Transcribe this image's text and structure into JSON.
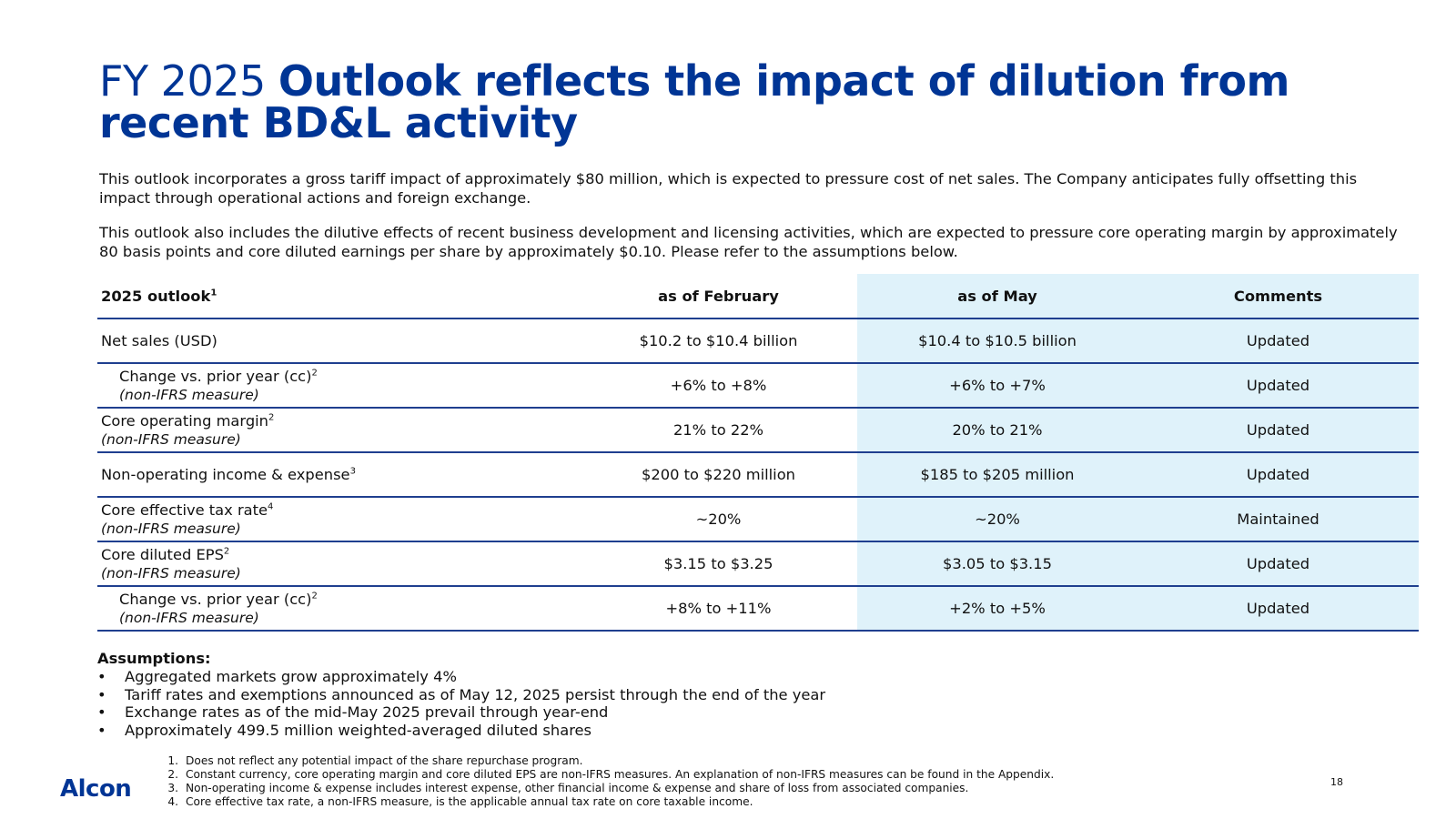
{
  "slide": {
    "title_light": "FY 2025 ",
    "title_bold": "Outlook reflects the impact of dilution from recent BD&L activity",
    "intro_1": "This outlook incorporates a gross tariff impact of approximately $80 million, which is expected to pressure cost of net sales. The Company anticipates fully offsetting this impact through operational actions and foreign exchange.",
    "intro_2": "This outlook also includes the dilutive effects of recent business development and licensing activities, which are expected to pressure core operating margin by approximately 80 basis points and core diluted earnings per share by approximately $0.10. Please refer to the assumptions below.",
    "page_number": "18",
    "logo_text": "Alcon",
    "brand_color": "#003595",
    "highlight_color": "#dff2fa"
  },
  "table": {
    "headers": {
      "col1": "2025 outlook",
      "col1_sup": "1",
      "col2": "as of February",
      "col3": "as of May",
      "col4": "Comments"
    },
    "rows": [
      {
        "label": "Net sales (USD)",
        "sup": "",
        "sub": "",
        "feb": "$10.2 to $10.4 billion",
        "may": "$10.4 to $10.5 billion",
        "comment": "Updated"
      },
      {
        "label": "Change vs. prior year (cc)",
        "sup": "2",
        "sub": "(non-IFRS measure)",
        "feb": "+6% to +8%",
        "may": "+6% to +7%",
        "comment": "Updated"
      },
      {
        "label": "Core operating margin",
        "sup": "2",
        "sub": "(non-IFRS measure)",
        "feb": "21% to 22%",
        "may": "20% to 21%",
        "comment": "Updated"
      },
      {
        "label": "Non-operating income & expense",
        "sup": "3",
        "sub": "",
        "feb": "$200 to $220 million",
        "may": "$185 to $205 million",
        "comment": "Updated"
      },
      {
        "label": "Core effective tax rate",
        "sup": "4",
        "sub": "(non-IFRS measure)",
        "feb": "~20%",
        "may": "~20%",
        "comment": "Maintained"
      },
      {
        "label": "Core diluted EPS",
        "sup": "2",
        "sub": "(non-IFRS measure)",
        "feb": "$3.15 to $3.25",
        "may": "$3.05 to $3.15",
        "comment": "Updated"
      },
      {
        "label": "Change vs. prior year (cc)",
        "sup": "2",
        "sub": "(non-IFRS measure)",
        "feb": "+8% to +11%",
        "may": "+2% to +5%",
        "comment": "Updated"
      }
    ]
  },
  "assumptions": {
    "title": "Assumptions:",
    "bullet": "•",
    "items": [
      "Aggregated markets grow approximately 4%",
      "Tariff rates and exemptions announced as of May 12, 2025 persist through the end of the year",
      "Exchange rates as of the mid-May 2025 prevail through year-end",
      "Approximately 499.5 million weighted-averaged diluted shares"
    ]
  },
  "footnotes": [
    {
      "num": "1.",
      "text": "Does not reflect any potential impact of the share repurchase program."
    },
    {
      "num": "2.",
      "text": "Constant currency, core operating margin and core diluted EPS are non-IFRS measures.  An explanation of non-IFRS measures can be found in the Appendix."
    },
    {
      "num": "3.",
      "text": "Non-operating income & expense includes interest expense, other financial income & expense and share of loss from associated companies."
    },
    {
      "num": "4.",
      "text": "Core effective tax rate, a non-IFRS measure, is the applicable annual tax rate on core taxable income."
    }
  ]
}
